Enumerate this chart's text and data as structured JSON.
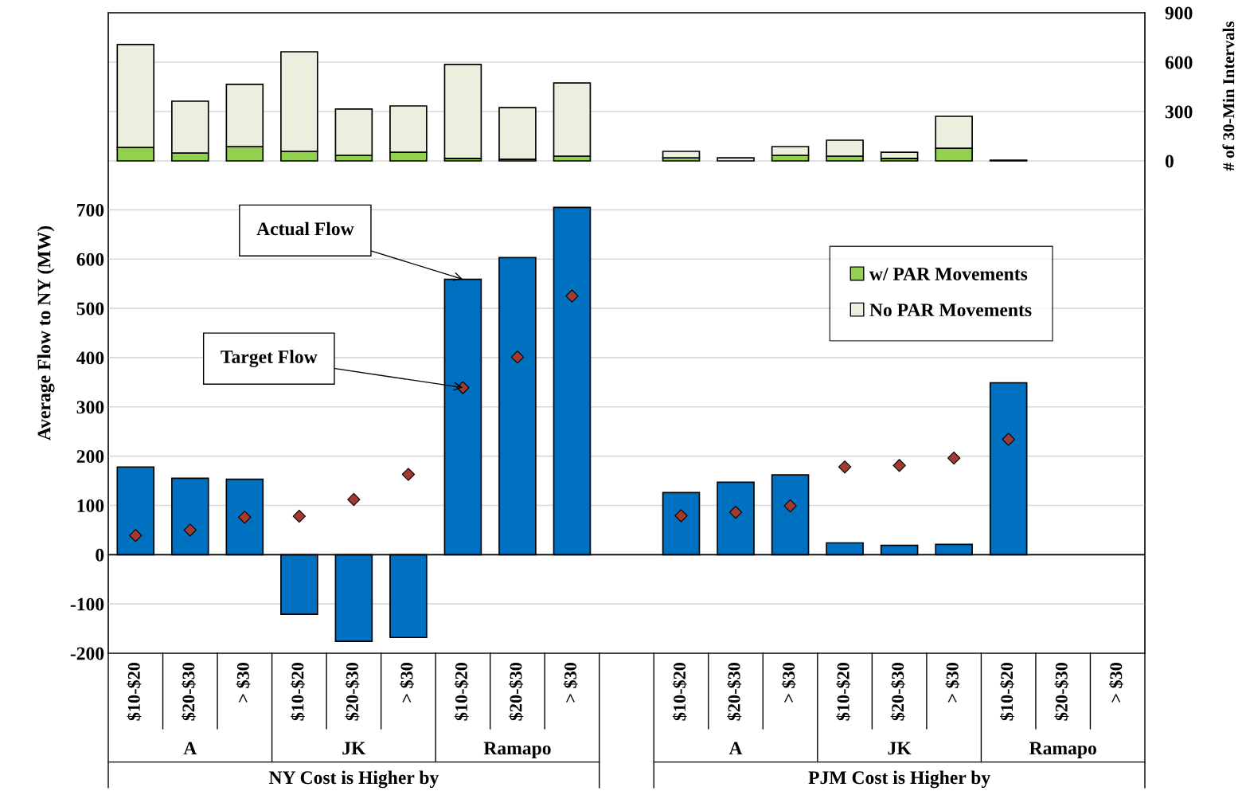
{
  "chart_data": {
    "type": "bar",
    "categories": [
      "$10-$20",
      "$20-$30",
      "> $30",
      "$10-$20",
      "$20-$30",
      "> $30",
      "$10-$20",
      "$20-$30",
      "> $30",
      null,
      "$10-$20",
      "$20-$30",
      "> $30",
      "$10-$20",
      "$20-$30",
      "> $30",
      "$10-$20",
      "$20-$30",
      "> $30"
    ],
    "series": [
      {
        "name": "Actual Flow",
        "axis": "y",
        "color": "#0070c0",
        "values": [
          178,
          155,
          153,
          -121,
          -176,
          -168,
          559,
          603,
          705,
          null,
          126,
          147,
          162,
          24,
          19,
          21,
          349,
          null,
          null
        ]
      },
      {
        "name": "Target Flow",
        "type": "scatter",
        "axis": "y",
        "color": "#a33a2f",
        "marker": "diamond",
        "values": [
          39,
          50,
          76,
          78,
          112,
          163,
          339,
          401,
          525,
          null,
          79,
          86,
          99,
          178,
          181,
          196,
          234,
          null,
          null
        ]
      },
      {
        "name": "w/ PAR Movements",
        "type": "bar",
        "axis": "y2",
        "color": "#92d050",
        "values": [
          82,
          48,
          87,
          58,
          34,
          53,
          15,
          10,
          29,
          null,
          19,
          null,
          34,
          29,
          15,
          77,
          null,
          null,
          null
        ]
      },
      {
        "name": "No PAR Movements",
        "type": "bar",
        "axis": "y2",
        "color": "#ebefdd",
        "values": [
          625,
          315,
          378,
          605,
          281,
          281,
          571,
          314,
          445,
          null,
          39,
          19,
          53,
          97,
          38,
          194,
          5,
          null,
          null
        ]
      }
    ],
    "stacked": true,
    "ylabel": "Average Flow to NY (MW)",
    "y2label": "# of 30-Min Intervals",
    "ylim": [
      -200,
      1100
    ],
    "yticks": [
      -200,
      -100,
      0,
      100,
      200,
      300,
      400,
      500,
      600,
      700
    ],
    "y2lim": [
      -2990,
      900
    ],
    "y2ticks": [
      0,
      300,
      600,
      900
    ],
    "grid": "y",
    "legend": "right",
    "annotations": [
      "A",
      "JK",
      "Ramapo",
      "NY Cost is Higher by",
      "A",
      "JK",
      "Ramapo",
      "PJM Cost is Higher by"
    ]
  }
}
